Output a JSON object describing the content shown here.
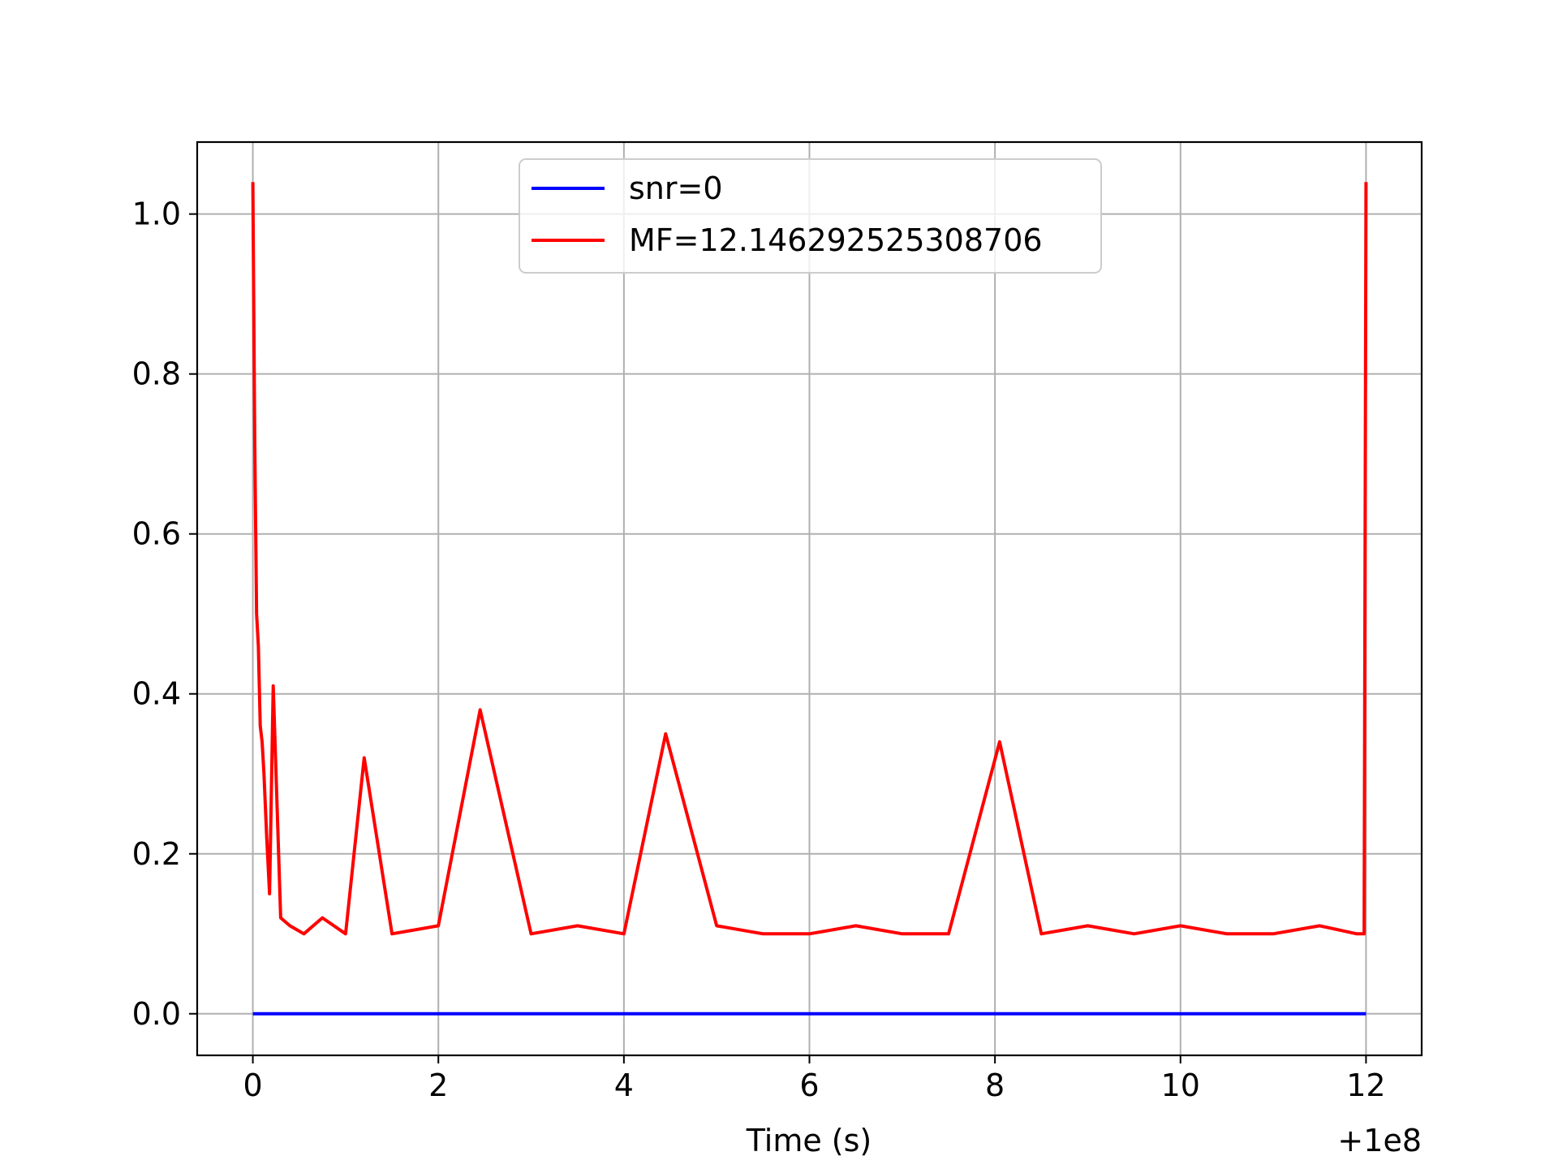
{
  "chart_data": {
    "type": "line",
    "title": "",
    "xlabel": "Time (s)",
    "ylabel": "",
    "x_offset_label": "+1e8",
    "xlim": [
      -0.6,
      12.6
    ],
    "ylim": [
      -0.052,
      1.09
    ],
    "xticks": [
      0,
      2,
      4,
      6,
      8,
      10,
      12
    ],
    "xtick_labels": [
      "0",
      "2",
      "4",
      "6",
      "8",
      "10",
      "12"
    ],
    "yticks": [
      0.0,
      0.2,
      0.4,
      0.6,
      0.8,
      1.0
    ],
    "ytick_labels": [
      "0.0",
      "0.2",
      "0.4",
      "0.6",
      "0.8",
      "1.0"
    ],
    "grid": true,
    "legend_position": "upper center",
    "series": [
      {
        "name": "snr=0",
        "color": "#0000ff",
        "x": [
          0,
          12
        ],
        "y": [
          0,
          0
        ]
      },
      {
        "name": "MF=12.146292525308706",
        "color": "#ff0000",
        "x": [
          0.0,
          0.02,
          0.04,
          0.06,
          0.08,
          0.1,
          0.12,
          0.15,
          0.18,
          0.22,
          0.3,
          0.4,
          0.55,
          0.75,
          1.0,
          1.2,
          1.5,
          2.0,
          2.45,
          3.0,
          3.5,
          4.0,
          4.45,
          5.0,
          5.5,
          6.0,
          6.5,
          7.0,
          7.5,
          8.05,
          8.5,
          9.0,
          9.5,
          10.0,
          10.5,
          11.0,
          11.5,
          11.9,
          11.98,
          12.0
        ],
        "y": [
          1.04,
          0.72,
          0.5,
          0.46,
          0.36,
          0.34,
          0.3,
          0.22,
          0.15,
          0.41,
          0.12,
          0.11,
          0.1,
          0.12,
          0.1,
          0.32,
          0.1,
          0.11,
          0.38,
          0.1,
          0.11,
          0.1,
          0.35,
          0.11,
          0.1,
          0.1,
          0.11,
          0.1,
          0.1,
          0.34,
          0.1,
          0.11,
          0.1,
          0.11,
          0.1,
          0.1,
          0.11,
          0.1,
          0.1,
          1.04
        ]
      }
    ]
  }
}
